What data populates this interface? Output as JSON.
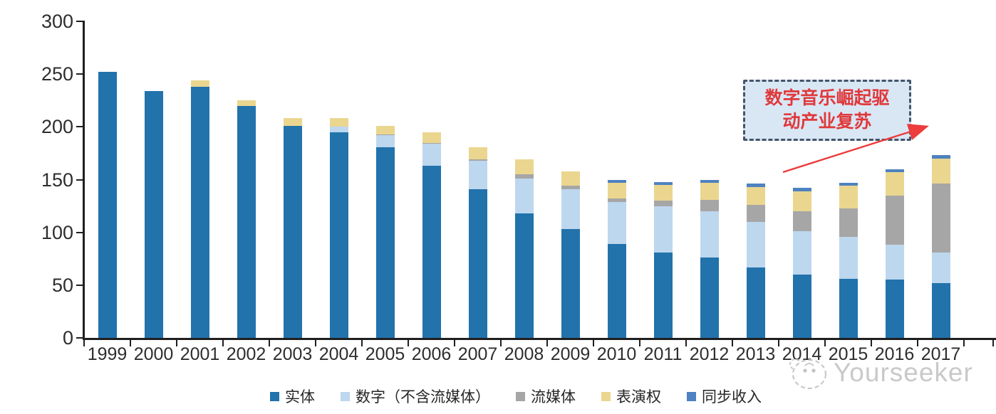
{
  "chart_data": {
    "type": "bar",
    "stacked": true,
    "title": "",
    "xlabel": "",
    "ylabel": "",
    "ylim": [
      0,
      300
    ],
    "yticks": [
      0,
      50,
      100,
      150,
      200,
      250,
      300
    ],
    "grid": false,
    "legend_position": "bottom",
    "categories": [
      "1999",
      "2000",
      "2001",
      "2002",
      "2003",
      "2004",
      "2005",
      "2006",
      "2007",
      "2008",
      "2009",
      "2010",
      "2011",
      "2012",
      "2013",
      "2014",
      "2015",
      "2016",
      "2017"
    ],
    "series": [
      {
        "key": "physical",
        "name": "实体",
        "color": "#2272AC",
        "values": [
          252,
          234,
          238,
          220,
          201,
          195,
          181,
          163,
          141,
          118,
          103,
          89,
          81,
          76,
          67,
          60,
          56,
          55,
          52
        ]
      },
      {
        "key": "digital-excl-streaming",
        "name": "数字（不含流媒体）",
        "color": "#BDD7EE",
        "values": [
          0,
          0,
          0,
          0,
          0,
          5,
          11,
          21,
          27,
          33,
          38,
          40,
          44,
          44,
          43,
          41,
          40,
          33,
          29
        ]
      },
      {
        "key": "streaming",
        "name": "流媒体",
        "color": "#A6A6A6",
        "values": [
          0,
          0,
          0,
          0,
          0,
          0,
          1,
          1,
          1,
          4,
          3,
          3,
          5,
          11,
          16,
          19,
          27,
          47,
          65
        ]
      },
      {
        "key": "performance-rights",
        "name": "表演权",
        "color": "#EAD68F",
        "values": [
          0,
          0,
          6,
          5,
          7,
          8,
          8,
          10,
          12,
          14,
          14,
          15,
          15,
          16,
          17,
          19,
          21,
          22,
          24
        ]
      },
      {
        "key": "sync-revenue",
        "name": "同步收入",
        "color": "#4E82C0",
        "values": [
          0,
          0,
          0,
          0,
          0,
          0,
          0,
          0,
          0,
          0,
          0,
          3,
          3,
          3,
          3,
          3,
          3,
          3,
          3
        ]
      }
    ]
  },
  "annotation": {
    "line1": "数字音乐崛起驱",
    "line2": "动产业复苏"
  },
  "watermark": {
    "text": "Yourseeker"
  }
}
